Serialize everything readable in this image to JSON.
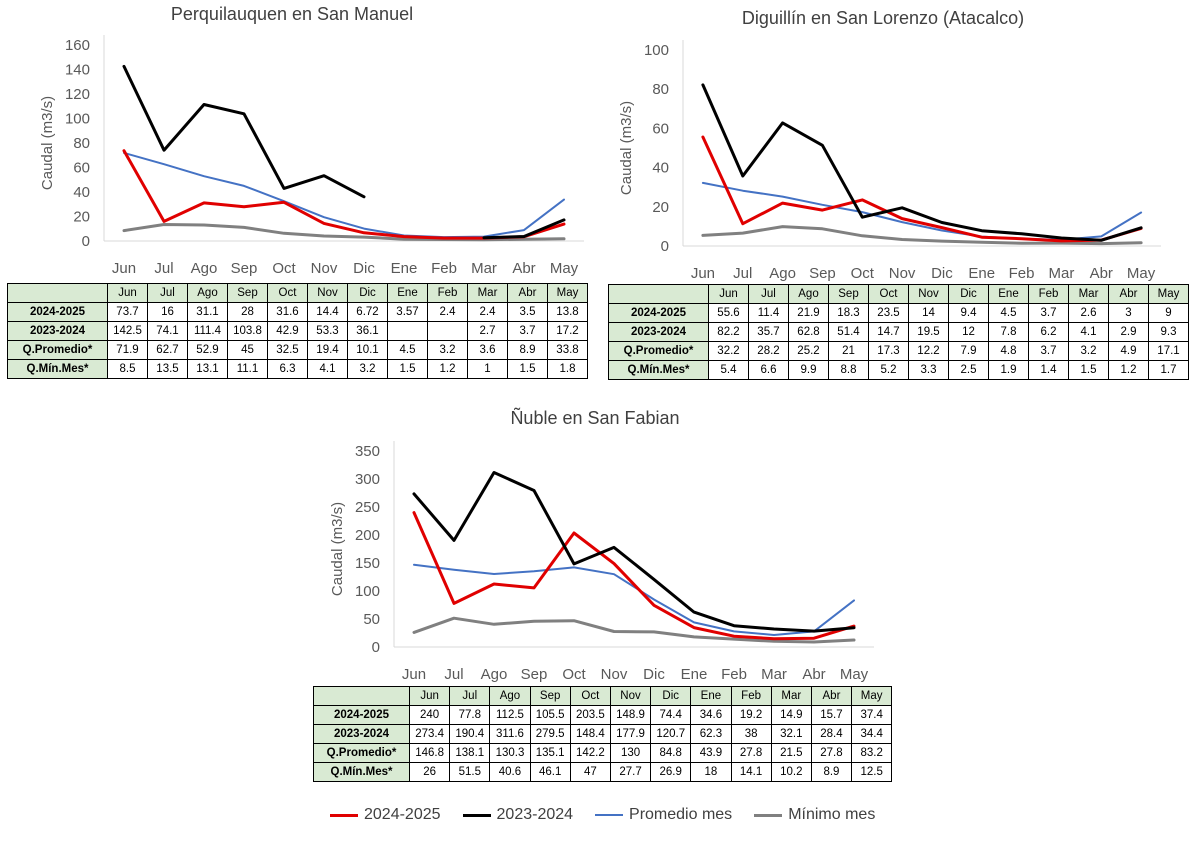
{
  "months": [
    "Jun",
    "Jul",
    "Ago",
    "Sep",
    "Oct",
    "Nov",
    "Dic",
    "Ene",
    "Feb",
    "Mar",
    "Abr",
    "May"
  ],
  "series": [
    {
      "name": "2024-2025",
      "color": "#e00000",
      "width": 3
    },
    {
      "name": "2023-2024",
      "color": "#000000",
      "width": 3
    },
    {
      "name": "Promedio mes",
      "color": "#4472c4",
      "width": 2
    },
    {
      "name": "Mínimo mes",
      "color": "#808080",
      "width": 3
    }
  ],
  "row_labels": [
    "2024-2025",
    "2023-2024",
    "Q.Promedio*",
    "Q.Mín.Mes*"
  ],
  "charts": [
    {
      "title": "Perquilauquen en San Manuel",
      "ylabel": "Caudal (m3/s)",
      "y_ticks": [
        "0",
        "20",
        "40",
        "60",
        "80",
        "100",
        "120",
        "140",
        "160"
      ],
      "ylim": [
        0,
        160
      ],
      "table": [
        [
          "73.7",
          "16",
          "31.1",
          "28",
          "31.6",
          "14.4",
          "6.72",
          "3.57",
          "2.4",
          "2.4",
          "3.5",
          "13.8"
        ],
        [
          "142.5",
          "74.1",
          "111.4",
          "103.8",
          "42.9",
          "53.3",
          "36.1",
          "",
          "",
          "2.7",
          "3.7",
          "17.2"
        ],
        [
          "71.9",
          "62.7",
          "52.9",
          "45",
          "32.5",
          "19.4",
          "10.1",
          "4.5",
          "3.2",
          "3.6",
          "8.9",
          "33.8"
        ],
        [
          "8.5",
          "13.5",
          "13.1",
          "11.1",
          "6.3",
          "4.1",
          "3.2",
          "1.5",
          "1.2",
          "1",
          "1.5",
          "1.8"
        ]
      ]
    },
    {
      "title": "Diguillín en San Lorenzo (Atacalco)",
      "ylabel": "Caudal (m3/s)",
      "y_ticks": [
        "0",
        "20",
        "40",
        "60",
        "80",
        "100"
      ],
      "ylim": [
        0,
        100
      ],
      "table": [
        [
          "55.6",
          "11.4",
          "21.9",
          "18.3",
          "23.5",
          "14",
          "9.4",
          "4.5",
          "3.7",
          "2.6",
          "3",
          "9"
        ],
        [
          "82.2",
          "35.7",
          "62.8",
          "51.4",
          "14.7",
          "19.5",
          "12",
          "7.8",
          "6.2",
          "4.1",
          "2.9",
          "9.3"
        ],
        [
          "32.2",
          "28.2",
          "25.2",
          "21",
          "17.3",
          "12.2",
          "7.9",
          "4.8",
          "3.7",
          "3.2",
          "4.9",
          "17.1"
        ],
        [
          "5.4",
          "6.6",
          "9.9",
          "8.8",
          "5.2",
          "3.3",
          "2.5",
          "1.9",
          "1.4",
          "1.5",
          "1.2",
          "1.7"
        ]
      ]
    },
    {
      "title": "Ñuble en San Fabian",
      "ylabel": "Caudal (m3/s)",
      "y_ticks": [
        "0",
        "50",
        "100",
        "150",
        "200",
        "250",
        "300",
        "350"
      ],
      "ylim": [
        0,
        350
      ],
      "table": [
        [
          "240",
          "77.8",
          "112.5",
          "105.5",
          "203.5",
          "148.9",
          "74.4",
          "34.6",
          "19.2",
          "14.9",
          "15.7",
          "37.4"
        ],
        [
          "273.4",
          "190.4",
          "311.6",
          "279.5",
          "148.4",
          "177.9",
          "120.7",
          "62.3",
          "38",
          "32.1",
          "28.4",
          "34.4"
        ],
        [
          "146.8",
          "138.1",
          "130.3",
          "135.1",
          "142.2",
          "130",
          "84.8",
          "43.9",
          "27.8",
          "21.5",
          "27.8",
          "83.2"
        ],
        [
          "26",
          "51.5",
          "40.6",
          "46.1",
          "47",
          "27.7",
          "26.9",
          "18",
          "14.1",
          "10.2",
          "8.9",
          "12.5"
        ]
      ]
    }
  ],
  "chart_data": [
    {
      "type": "line",
      "title": "Perquilauquen en San Manuel",
      "ylabel": "Caudal (m3/s)",
      "ylim": [
        0,
        160
      ],
      "categories": [
        "Jun",
        "Jul",
        "Ago",
        "Sep",
        "Oct",
        "Nov",
        "Dic",
        "Ene",
        "Feb",
        "Mar",
        "Abr",
        "May"
      ],
      "series": [
        {
          "name": "2024-2025",
          "values": [
            73.7,
            16,
            31.1,
            28,
            31.6,
            14.4,
            6.72,
            3.57,
            2.4,
            2.4,
            3.5,
            13.8
          ]
        },
        {
          "name": "2023-2024",
          "values": [
            142.5,
            74.1,
            111.4,
            103.8,
            42.9,
            53.3,
            36.1,
            null,
            null,
            2.7,
            3.7,
            17.2
          ]
        },
        {
          "name": "Promedio mes",
          "values": [
            71.9,
            62.7,
            52.9,
            45,
            32.5,
            19.4,
            10.1,
            4.5,
            3.2,
            3.6,
            8.9,
            33.8
          ]
        },
        {
          "name": "Mínimo mes",
          "values": [
            8.5,
            13.5,
            13.1,
            11.1,
            6.3,
            4.1,
            3.2,
            1.5,
            1.2,
            1,
            1.5,
            1.8
          ]
        }
      ]
    },
    {
      "type": "line",
      "title": "Diguillín en San Lorenzo (Atacalco)",
      "ylabel": "Caudal (m3/s)",
      "ylim": [
        0,
        100
      ],
      "categories": [
        "Jun",
        "Jul",
        "Ago",
        "Sep",
        "Oct",
        "Nov",
        "Dic",
        "Ene",
        "Feb",
        "Mar",
        "Abr",
        "May"
      ],
      "series": [
        {
          "name": "2024-2025",
          "values": [
            55.6,
            11.4,
            21.9,
            18.3,
            23.5,
            14,
            9.4,
            4.5,
            3.7,
            2.6,
            3,
            9
          ]
        },
        {
          "name": "2023-2024",
          "values": [
            82.2,
            35.7,
            62.8,
            51.4,
            14.7,
            19.5,
            12,
            7.8,
            6.2,
            4.1,
            2.9,
            9.3
          ]
        },
        {
          "name": "Promedio mes",
          "values": [
            32.2,
            28.2,
            25.2,
            21,
            17.3,
            12.2,
            7.9,
            4.8,
            3.7,
            3.2,
            4.9,
            17.1
          ]
        },
        {
          "name": "Mínimo mes",
          "values": [
            5.4,
            6.6,
            9.9,
            8.8,
            5.2,
            3.3,
            2.5,
            1.9,
            1.4,
            1.5,
            1.2,
            1.7
          ]
        }
      ]
    },
    {
      "type": "line",
      "title": "Ñuble en San Fabian",
      "ylabel": "Caudal (m3/s)",
      "ylim": [
        0,
        350
      ],
      "categories": [
        "Jun",
        "Jul",
        "Ago",
        "Sep",
        "Oct",
        "Nov",
        "Dic",
        "Ene",
        "Feb",
        "Mar",
        "Abr",
        "May"
      ],
      "series": [
        {
          "name": "2024-2025",
          "values": [
            240,
            77.8,
            112.5,
            105.5,
            203.5,
            148.9,
            74.4,
            34.6,
            19.2,
            14.9,
            15.7,
            37.4
          ]
        },
        {
          "name": "2023-2024",
          "values": [
            273.4,
            190.4,
            311.6,
            279.5,
            148.4,
            177.9,
            120.7,
            62.3,
            38,
            32.1,
            28.4,
            34.4
          ]
        },
        {
          "name": "Promedio mes",
          "values": [
            146.8,
            138.1,
            130.3,
            135.1,
            142.2,
            130,
            84.8,
            43.9,
            27.8,
            21.5,
            27.8,
            83.2
          ]
        },
        {
          "name": "Mínimo mes",
          "values": [
            26,
            51.5,
            40.6,
            46.1,
            47,
            27.7,
            26.9,
            18,
            14.1,
            10.2,
            8.9,
            12.5
          ]
        }
      ]
    }
  ]
}
